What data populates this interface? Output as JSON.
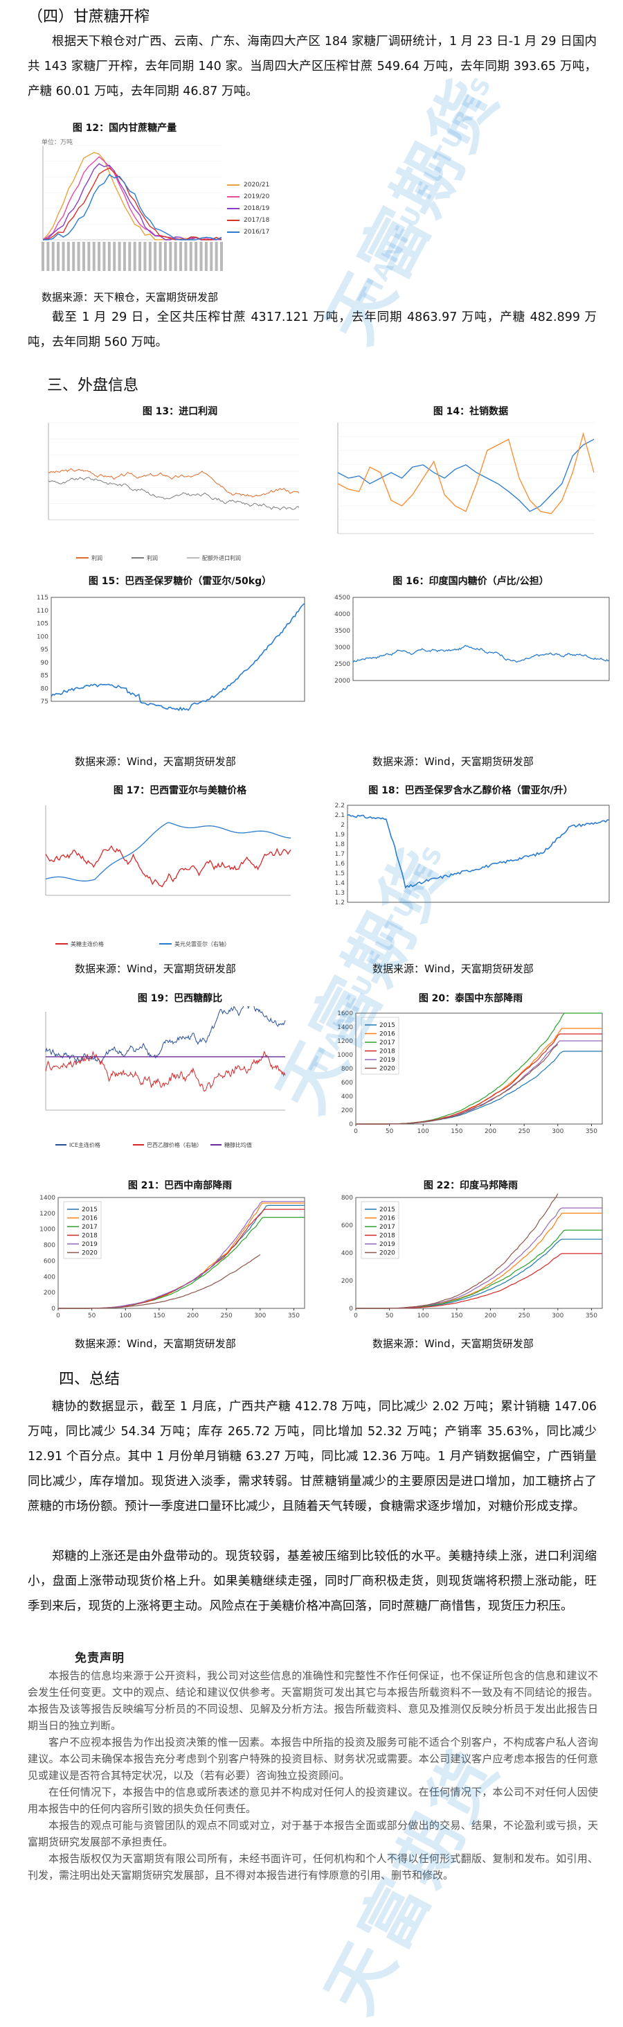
{
  "s4_heading": "（四）甘蔗糖开榨",
  "s4_para1": "根据天下粮仓对广西、云南、广东、海南四大产区 184 家糖厂调研统计，1 月 23 日-1 月 29 日国内共 143 家糖厂开榨，去年同期 140 家。当周四大产区压榨甘蔗 549.64 万吨，去年同期 393.65 万吨，产糖 60.01 万吨，去年同期 46.87 万吨。",
  "fig12_caption": "图 12：国内甘蔗糖产量",
  "fig12_src": "数据来源：天下粮仓，天富期货研发部",
  "s4_para2": "截至 1 月 29 日，全区共压榨甘蔗 4317.121 万吨，去年同期 4863.97 万吨，产糖 482.899 万吨，去年同期 560 万吨。",
  "s3_heading": "三、外盘信息",
  "fig13_caption": "图 13：进口利润",
  "fig14_caption": "图 14：社销数据",
  "fig15_caption": "图 15：巴西圣保罗糖价（雷亚尔/50kg）",
  "fig16_caption": "图 16：印度国内糖价（卢比/公担）",
  "fig17_caption": "图 17：巴西雷亚尔与美糖价格",
  "fig18_caption": "图 18：巴西圣保罗含水乙醇价格（雷亚尔/升）",
  "fig19_caption": "图 19：巴西糖醇比",
  "fig20_caption": "图 20：泰国中东部降雨",
  "fig21_caption": "图 21：巴西中南部降雨",
  "fig22_caption": "图 22：印度马邦降雨",
  "src_wind": "数据来源：Wind，天富期货研发部",
  "s4b_heading": "四、总结",
  "sum_para1": "糖协的数据显示，截至 1 月底，广西共产糖 412.78 万吨，同比减少 2.02 万吨；累计销糖 147.06 万吨，同比减少 54.34 万吨；库存 265.72 万吨，同比增加 52.32 万吨；产销率 35.63%，同比减少 12.91 个百分点。其中 1 月份单月销糖 63.27 万吨，同比减 12.36 万吨。1 月产销数据偏空，广西销量同比减少，库存增加。现货进入淡季，需求转弱。甘蔗糖销量减少的主要原因是进口增加，加工糖挤占了蔗糖的市场份额。预计一季度进口量环比减少，且随着天气转暖，食糖需求逐步增加，对糖价形成支撑。",
  "sum_para2": "郑糖的上涨还是由外盘带动的。现货较弱，基差被压缩到比较低的水平。美糖持续上涨，进口利润缩小，盘面上涨带动现货价格上升。如果美糖继续走强，同时厂商积极走货，则现货端将积攒上涨动能，旺季到来后，现货的上涨将更主动。风险点在于美糖价格冲高回落，同时蔗糖厂商惜售，现货压力积压。",
  "disclaimer_title": "免责声明",
  "disclaimer_p1": "本报告的信息均来源于公开资料，我公司对这些信息的准确性和完整性不作任何保证，也不保证所包含的信息和建议不会发生任何变更。文中的观点、结论和建议仅供参考。天富期货可发出其它与本报告所载资料不一致及有不同结论的报告。本报告及该等报告反映编写分析员的不同设想、见解及分析方法。报告所载资料、意见及推测仅反映分析员于发出此报告日期当日的独立判断。",
  "disclaimer_p2": "客户不应视本报告为作出投资决策的惟一因素。本报告中所指的投资及服务可能不适合个别客户，不构成客户私人咨询建议。本公司未确保本报告充分考虑到个别客户特殊的投资目标、财务状况或需要。本公司建议客户应考虑本报告的任何意见或建议是否符合其特定状况，以及（若有必要）咨询独立投资顾问。",
  "disclaimer_p3": "在任何情况下，本报告中的信息或所表述的意见并不构成对任何人的投资建议。在任何情况下，本公司不对任何人因使用本报告中的任何内容所引致的损失负任何责任。",
  "disclaimer_p4": "本报告的观点可能与资管团队的观点不同或对立，对于基于本报告全面或部分做出的交易、结果，不论盈利或亏损，天富期货研究发展部不承担责任。",
  "disclaimer_p5": "本报告版权仅为天富期货有限公司所有，未经书面许可，任何机构和个人不得以任何形式翻版、复制和发布。如引用、刊发，需注明出处天富期货研究发展部，且不得对本报告进行有悖原意的引用、删节和修改。",
  "fig12_unit": "单位：万吨",
  "fig12_legend": [
    "2020/21",
    "2019/20",
    "2018/19",
    "2017/18",
    "2016/17"
  ],
  "fig12_colors": [
    "#e8a33c",
    "#e64ba0",
    "#8a3cc8",
    "#d8322c",
    "#2a7bd0"
  ],
  "series_colors": [
    "#1f77b4",
    "#ff7f0e",
    "#2ca02c",
    "#d62728",
    "#9467bd",
    "#8c564b"
  ],
  "rain_years": [
    "2015",
    "2016",
    "2017",
    "2018",
    "2019",
    "2020"
  ],
  "fig13_legend": [
    "利润",
    "利润",
    "配额外进口利润"
  ],
  "fig17_legend": [
    "美糖主连价格",
    "美元兑雷亚尔（右轴）"
  ],
  "fig19_legend": [
    "ICE主连价格",
    "巴西乙醇价格（右轴）",
    "糖醇比均值"
  ],
  "fig20_yticks": [
    "1600",
    "1400",
    "1200",
    "1000",
    "800",
    "600",
    "400",
    "200",
    "0"
  ],
  "fig21_yticks": [
    "1400",
    "1200",
    "1000",
    "800",
    "600",
    "400",
    "200",
    "0"
  ],
  "fig22_yticks": [
    "800",
    "600",
    "400",
    "200",
    "0"
  ],
  "rain_xticks": [
    "0",
    "50",
    "100",
    "150",
    "200",
    "250",
    "300",
    "350"
  ],
  "fig15_yticks": [
    "115",
    "110",
    "105",
    "100",
    "95",
    "90",
    "85",
    "80",
    "75"
  ],
  "fig16_yticks": [
    "4500",
    "4000",
    "3500",
    "3000",
    "2500",
    "2000"
  ],
  "fig18_yticks": [
    "2.2",
    "2.1",
    "2",
    "1.9",
    "1.8",
    "1.7",
    "1.6",
    "1.5",
    "1.4",
    "1.3",
    "1.2"
  ],
  "watermark_cn": "天富期货",
  "watermark_en": "TIANFU FUTURES"
}
